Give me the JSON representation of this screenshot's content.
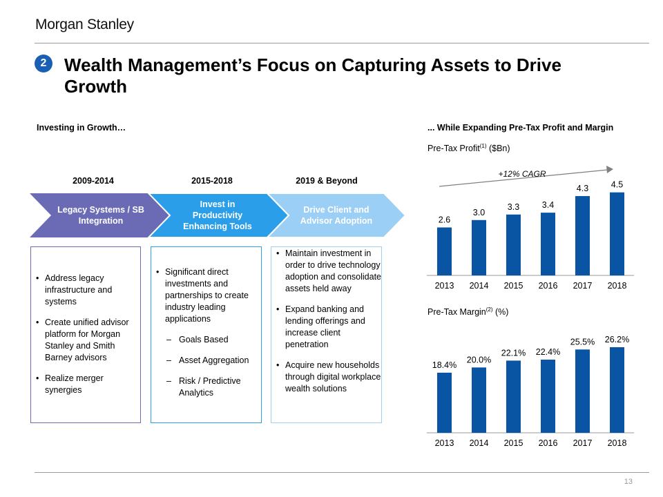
{
  "header": {
    "logo": "Morgan Stanley",
    "badge": "2",
    "title": "Wealth Management’s Focus on Capturing Assets to Drive Growth"
  },
  "left": {
    "heading": "Investing in Growth…",
    "phases": [
      {
        "period": "2009-2014",
        "label": "Legacy Systems / SB Integration",
        "color": "#6b6bb5",
        "bullets": [
          {
            "text": "Address legacy infrastructure and systems"
          },
          {
            "text": "Create unified advisor platform for Morgan Stanley and Smith Barney advisors"
          },
          {
            "text": "Realize merger synergies"
          }
        ]
      },
      {
        "period": "2015-2018",
        "label": "Invest in Productivity Enhancing Tools",
        "color": "#2a9ee8",
        "bullets": [
          {
            "text": "Significant direct investments and partnerships to create industry leading applications"
          },
          {
            "text": "Goals Based",
            "sub": true
          },
          {
            "text": "Asset Aggregation",
            "sub": true
          },
          {
            "text": "Risk / Predictive Analytics",
            "sub": true
          }
        ]
      },
      {
        "period": "2019 & Beyond",
        "label": "Drive Client and Advisor Adoption",
        "color": "#9ccff5",
        "bullets": [
          {
            "text": "Maintain investment in order to drive technology adoption and consolidate assets held away"
          },
          {
            "text": "Expand banking and lending offerings and increase client penetration"
          },
          {
            "text": "Acquire new households through digital workplace wealth solutions"
          }
        ]
      }
    ]
  },
  "right": {
    "heading": "... While Expanding Pre-Tax Profit and Margin",
    "profit_label": "Pre-Tax Profit",
    "profit_note": "(1)",
    "profit_unit": "($Bn)",
    "margin_label": "Pre-Tax Margin",
    "margin_note": "(2)",
    "margin_unit": "(%)",
    "cagr_label": "+12% CAGR"
  },
  "chart_data": [
    {
      "type": "bar",
      "title": "Pre-Tax Profit (1) ($Bn)",
      "categories": [
        "2013",
        "2014",
        "2015",
        "2016",
        "2017",
        "2018"
      ],
      "values": [
        2.6,
        3.0,
        3.3,
        3.4,
        4.3,
        4.5
      ],
      "data_labels": [
        "2.6",
        "3.0",
        "3.3",
        "3.4",
        "4.3",
        "4.5"
      ],
      "ylim": [
        0,
        4.9
      ],
      "color": "#0a55a3",
      "annotation": "+12% CAGR"
    },
    {
      "type": "bar",
      "title": "Pre-Tax Margin (2) (%)",
      "categories": [
        "2013",
        "2014",
        "2015",
        "2016",
        "2017",
        "2018"
      ],
      "values": [
        18.4,
        20.0,
        22.1,
        22.4,
        25.5,
        26.2
      ],
      "data_labels": [
        "18.4%",
        "20.0%",
        "22.1%",
        "22.4%",
        "25.5%",
        "26.2%"
      ],
      "ylim": [
        0,
        28.1
      ],
      "color": "#0a55a3"
    }
  ],
  "footer": {
    "page": "13"
  }
}
